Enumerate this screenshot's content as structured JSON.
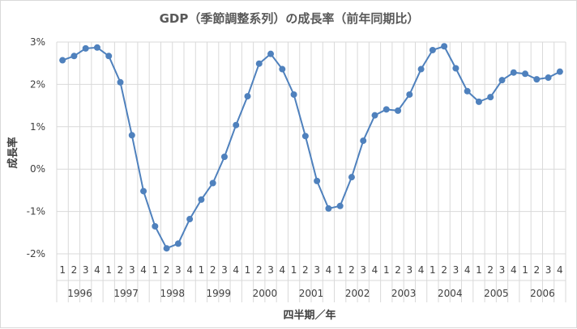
{
  "chart_data": {
    "type": "line",
    "title": "GDP（季節調整系列）の成長率（前年同期比）",
    "xlabel": "四半期／年",
    "ylabel": "成長率",
    "ylim": [
      -2,
      3
    ],
    "y_ticks": [
      "3%",
      "2%",
      "1%",
      "0%",
      "-1%",
      "-2%"
    ],
    "y_tick_values": [
      3,
      2,
      1,
      0,
      -1,
      -2
    ],
    "quarters": [
      "1",
      "2",
      "3",
      "4"
    ],
    "years": [
      "1996",
      "1997",
      "1998",
      "1999",
      "2000",
      "2001",
      "2002",
      "2003",
      "2004",
      "2005",
      "2006"
    ],
    "grid": true,
    "legend": "none",
    "series": [
      {
        "color": "#4f81bd",
        "values": [
          2.57,
          2.67,
          2.85,
          2.87,
          2.67,
          2.05,
          0.8,
          -0.52,
          -1.35,
          -1.87,
          -1.76,
          -1.18,
          -0.72,
          -0.33,
          0.29,
          1.04,
          1.72,
          2.49,
          2.72,
          2.36,
          1.76,
          0.78,
          -0.28,
          -0.93,
          -0.87,
          -0.19,
          0.67,
          1.27,
          1.41,
          1.38,
          1.76,
          2.36,
          2.81,
          2.9,
          2.38,
          1.84,
          1.59,
          1.7,
          2.1,
          2.28,
          2.25,
          2.12,
          2.16,
          2.3
        ]
      }
    ]
  }
}
